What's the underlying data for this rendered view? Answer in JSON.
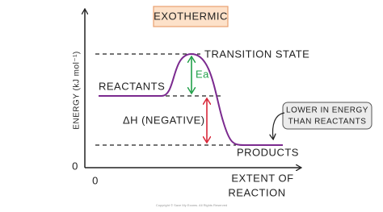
{
  "header": {
    "title": "EXOTHERMIC"
  },
  "axes": {
    "y_label": "ENERGY (kJ mol⁻¹)",
    "y_origin": "0",
    "x_origin": "0",
    "x_label": [
      "EXTENT OF",
      "REACTION"
    ]
  },
  "labels": {
    "transition_state": "TRANSITION STATE",
    "reactants": "REACTANTS",
    "activation_energy": "Ea",
    "enthalpy_change": "ΔH (NEGATIVE)",
    "products": "PRODUCTS"
  },
  "callout": {
    "lines": [
      "LOWER IN ENERGY",
      "THAN REACTANTS"
    ]
  },
  "footer": {
    "copyright": "Copyright © Save My Exams. All Rights Reserved"
  }
}
